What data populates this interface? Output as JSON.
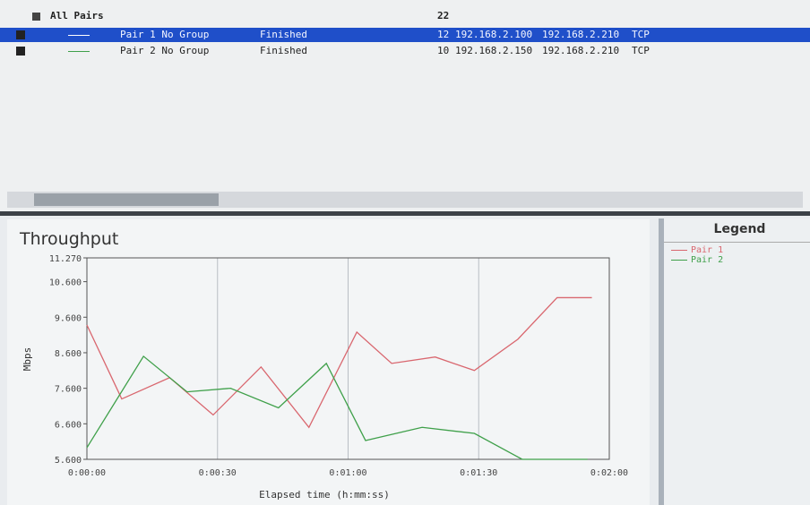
{
  "table": {
    "header": [
      "All Pairs",
      "22"
    ],
    "rows": [
      [
        "Pair 1 No Group",
        "Finished",
        "12",
        "192.168.2.100",
        "192.168.2.210",
        "TCP"
      ],
      [
        "Pair 2 No Group",
        "Finished",
        "10",
        "192.168.2.150",
        "192.168.2.210",
        "TCP"
      ]
    ]
  },
  "legend_title": "Legend",
  "chart_data": {
    "type": "line",
    "title": "Throughput",
    "y_label": "Mbps",
    "x_label": "Elapsed time (h:mm:ss)",
    "xlim": [
      0,
      120
    ],
    "xticks": [
      {
        "value": 0,
        "label": "0:00:00"
      },
      {
        "value": 30,
        "label": "0:00:30"
      },
      {
        "value": 60,
        "label": "0:01:00"
      },
      {
        "value": 90,
        "label": "0:01:30"
      },
      {
        "value": 120,
        "label": "0:02:00"
      }
    ],
    "ylim": [
      5.6,
      11.27
    ],
    "yticks": [
      {
        "value": 5.6,
        "label": "5.600"
      },
      {
        "value": 6.6,
        "label": "6.600"
      },
      {
        "value": 7.6,
        "label": "7.600"
      },
      {
        "value": 8.6,
        "label": "8.600"
      },
      {
        "value": 9.6,
        "label": "9.600"
      },
      {
        "value": 10.6,
        "label": "10.600"
      },
      {
        "value": 11.27,
        "label": "11.270"
      }
    ],
    "grid": true,
    "series": [
      {
        "name": "Pair 1",
        "color": "#d9676f",
        "x": [
          0,
          8,
          19,
          29,
          40,
          51,
          62,
          70,
          80,
          89,
          99,
          108,
          116
        ],
        "values": [
          9.38,
          7.3,
          7.9,
          6.85,
          8.2,
          6.5,
          9.18,
          8.3,
          8.48,
          8.1,
          8.98,
          10.15,
          10.15
        ]
      },
      {
        "name": "Pair 2",
        "color": "#3fa04a",
        "x": [
          0,
          13,
          23,
          33,
          44,
          55,
          64,
          77,
          89,
          100,
          115
        ],
        "values": [
          5.93,
          8.5,
          7.5,
          7.6,
          7.05,
          8.3,
          6.13,
          6.5,
          6.33,
          5.6,
          5.6
        ]
      }
    ]
  }
}
